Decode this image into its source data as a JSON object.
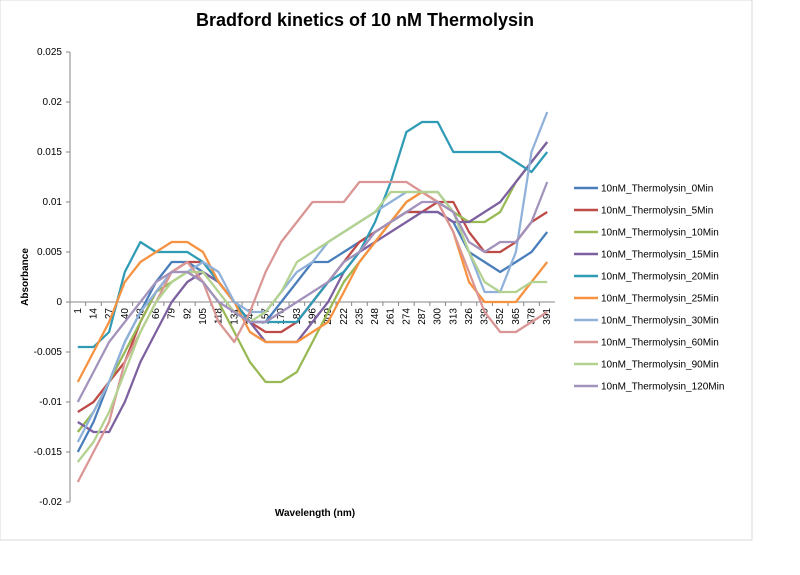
{
  "chart_data": {
    "type": "line",
    "title": "Bradford kinetics of 10 nM Thermolysin",
    "x_label": "Wavelength (nm)",
    "y_label": "Absorbance",
    "categories": [
      1,
      14,
      27,
      40,
      53,
      66,
      79,
      92,
      105,
      118,
      131,
      144,
      157,
      170,
      183,
      196,
      209,
      222,
      235,
      248,
      261,
      274,
      287,
      300,
      313,
      326,
      339,
      352,
      365,
      378,
      391
    ],
    "ylim": [
      -0.02,
      0.025
    ],
    "yticks": [
      -0.02,
      -0.015,
      -0.01,
      -0.005,
      0,
      0.005,
      0.01,
      0.015,
      0.02,
      0.025
    ],
    "grid": false,
    "legend": "right",
    "series": [
      {
        "name": "10nM_Thermolysin_0Min",
        "color": "#4a7ebb",
        "values": [
          -0.015,
          -0.012,
          -0.008,
          -0.004,
          -0.001,
          0.002,
          0.004,
          0.004,
          0.003,
          0.002,
          0,
          -0.002,
          -0.002,
          0,
          0.002,
          0.004,
          0.004,
          0.005,
          0.006,
          0.007,
          0.008,
          0.009,
          0.009,
          0.009,
          0.008,
          0.005,
          0.004,
          0.003,
          0.004,
          0.005,
          0.007
        ]
      },
      {
        "name": "10nM_Thermolysin_5Min",
        "color": "#be4b48",
        "values": [
          -0.011,
          -0.01,
          -0.008,
          -0.006,
          -0.002,
          0.001,
          0.003,
          0.004,
          0.004,
          0.002,
          0,
          -0.002,
          -0.003,
          -0.003,
          -0.002,
          0,
          0.002,
          0.004,
          0.006,
          0.007,
          0.008,
          0.009,
          0.009,
          0.01,
          0.01,
          0.007,
          0.005,
          0.005,
          0.006,
          0.008,
          0.009
        ]
      },
      {
        "name": "10nM_Thermolysin_10Min",
        "color": "#98b954",
        "values": [
          -0.013,
          -0.011,
          -0.008,
          -0.005,
          -0.002,
          0.001,
          0.002,
          0.003,
          0.002,
          0,
          -0.003,
          -0.006,
          -0.008,
          -0.008,
          -0.007,
          -0.004,
          -0.001,
          0.002,
          0.004,
          0.006,
          0.008,
          0.01,
          0.011,
          0.01,
          0.009,
          0.008,
          0.008,
          0.009,
          0.012,
          0.014,
          0.016
        ]
      },
      {
        "name": "10nM_Thermolysin_15Min",
        "color": "#7d60a0",
        "values": [
          -0.012,
          -0.013,
          -0.013,
          -0.01,
          -0.006,
          -0.003,
          0,
          0.002,
          0.003,
          0.002,
          0,
          -0.002,
          -0.004,
          -0.004,
          -0.004,
          -0.002,
          0,
          0.003,
          0.005,
          0.006,
          0.007,
          0.008,
          0.009,
          0.009,
          0.008,
          0.008,
          0.009,
          0.01,
          0.012,
          0.014,
          0.016
        ]
      },
      {
        "name": "10nM_Thermolysin_20Min",
        "color": "#2f9bb5",
        "values": [
          -0.0045,
          -0.0045,
          -0.003,
          0.003,
          0.006,
          0.005,
          0.005,
          0.005,
          0.004,
          0.002,
          0,
          -0.002,
          -0.002,
          -0.002,
          -0.002,
          0,
          0.002,
          0.003,
          0.005,
          0.008,
          0.012,
          0.017,
          0.018,
          0.018,
          0.015,
          0.015,
          0.015,
          0.015,
          0.014,
          0.013,
          0.015
        ]
      },
      {
        "name": "10nM_Thermolysin_25Min",
        "color": "#f69240",
        "values": [
          -0.008,
          -0.005,
          -0.002,
          0.002,
          0.004,
          0.005,
          0.006,
          0.006,
          0.005,
          0.002,
          0,
          -0.003,
          -0.004,
          -0.004,
          -0.004,
          -0.003,
          -0.002,
          0.001,
          0.004,
          0.006,
          0.008,
          0.01,
          0.011,
          0.01,
          0.007,
          0.002,
          0,
          0,
          0,
          0.002,
          0.004
        ]
      },
      {
        "name": "10nM_Thermolysin_30Min",
        "color": "#8fb1da",
        "values": [
          -0.014,
          -0.011,
          -0.008,
          -0.004,
          -0.001,
          0.001,
          0.003,
          0.003,
          0.004,
          0.003,
          0,
          -0.001,
          -0.001,
          0.001,
          0.003,
          0.004,
          0.006,
          0.007,
          0.008,
          0.009,
          0.01,
          0.011,
          0.011,
          0.011,
          0.009,
          0.005,
          0.001,
          0.001,
          0.005,
          0.015,
          0.019
        ]
      },
      {
        "name": "10nM_Thermolysin_60Min",
        "color": "#d99694",
        "values": [
          -0.018,
          -0.015,
          -0.012,
          -0.006,
          -0.003,
          0,
          0.003,
          0.004,
          0.002,
          -0.002,
          -0.004,
          -0.001,
          0.003,
          0.006,
          0.008,
          0.01,
          0.01,
          0.01,
          0.012,
          0.012,
          0.012,
          0.012,
          0.011,
          0.01,
          0.007,
          0.003,
          -0.001,
          -0.003,
          -0.003,
          -0.002,
          -0.001
        ]
      },
      {
        "name": "10nM_Thermolysin_90Min",
        "color": "#b3d28f",
        "values": [
          -0.016,
          -0.014,
          -0.011,
          -0.007,
          -0.003,
          0,
          0.002,
          0.003,
          0.003,
          0.001,
          -0.001,
          -0.002,
          -0.001,
          0.001,
          0.004,
          0.005,
          0.006,
          0.007,
          0.008,
          0.009,
          0.011,
          0.011,
          0.011,
          0.011,
          0.009,
          0.005,
          0.002,
          0.001,
          0.001,
          0.002,
          0.002
        ]
      },
      {
        "name": "10nM_Thermolysin_120Min",
        "color": "#a292bc",
        "values": [
          -0.01,
          -0.007,
          -0.004,
          -0.002,
          0,
          0.002,
          0.003,
          0.003,
          0.002,
          0,
          -0.001,
          -0.002,
          -0.002,
          -0.001,
          0,
          0.001,
          0.002,
          0.004,
          0.005,
          0.007,
          0.008,
          0.009,
          0.01,
          0.01,
          0.009,
          0.006,
          0.005,
          0.006,
          0.006,
          0.008,
          0.012
        ]
      }
    ]
  }
}
